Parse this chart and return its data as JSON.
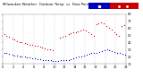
{
  "title": "Milwaukee Weather  Outdoor Temp  vs  Dew Point  (24 Hours)",
  "title_fontsize": 2.8,
  "background_color": "#ffffff",
  "xlim": [
    0,
    24
  ],
  "ylim": [
    10,
    80
  ],
  "yticks": [
    10,
    20,
    30,
    40,
    50,
    60,
    70,
    80
  ],
  "tick_fontsize": 2.5,
  "temp_color": "#cc0000",
  "dew_color": "#0000cc",
  "legend_bar_blue": "#0000cc",
  "legend_bar_red": "#cc0000",
  "grid_color": "#aaaaaa",
  "temp_x": [
    0.3,
    0.7,
    1.2,
    1.8,
    2.3,
    2.7,
    3.2,
    3.7,
    4.3,
    4.7,
    5.2,
    5.7,
    6.2,
    6.8,
    7.3,
    7.7,
    8.2,
    8.7,
    9.2,
    9.7,
    11.2,
    11.7,
    12.2,
    12.8,
    13.3,
    13.8,
    14.3,
    14.7,
    15.2,
    15.7,
    16.2,
    16.7,
    17.2,
    17.8,
    18.2,
    18.7,
    19.2,
    19.7,
    20.2,
    20.7,
    21.2,
    21.7,
    22.2,
    22.7,
    23.2,
    23.7
  ],
  "temp_y": [
    52,
    50,
    48,
    46,
    44,
    42,
    41,
    40,
    39,
    38,
    37,
    37,
    36,
    35,
    34,
    33,
    32,
    31,
    30,
    29,
    47,
    48,
    50,
    52,
    53,
    54,
    55,
    56,
    57,
    58,
    57,
    55,
    52,
    50,
    66,
    67,
    68,
    67,
    63,
    61,
    58,
    55,
    52,
    50,
    63,
    65
  ],
  "dew_x": [
    0.3,
    0.7,
    1.2,
    1.8,
    2.3,
    2.7,
    3.2,
    3.7,
    4.3,
    4.7,
    5.2,
    5.7,
    6.3,
    6.8,
    7.3,
    7.8,
    8.3,
    8.8,
    9.3,
    9.8,
    10.3,
    10.8,
    11.3,
    11.8,
    12.3,
    12.8,
    13.3,
    13.8,
    14.3,
    14.8,
    15.3,
    15.8,
    16.3,
    16.8,
    17.3,
    17.8,
    18.3,
    18.8,
    19.3,
    19.8,
    20.3,
    20.8,
    21.3,
    21.8,
    22.3,
    22.8,
    23.3,
    23.8
  ],
  "dew_y": [
    26,
    25,
    24,
    23,
    22,
    22,
    21,
    20,
    20,
    19,
    19,
    18,
    18,
    17,
    17,
    16,
    16,
    15,
    15,
    14,
    14,
    14,
    15,
    15,
    16,
    16,
    17,
    18,
    19,
    20,
    21,
    22,
    23,
    24,
    25,
    25,
    26,
    27,
    28,
    29,
    30,
    29,
    28,
    27,
    26,
    25,
    24,
    23
  ],
  "vline_positions": [
    2,
    4,
    6,
    8,
    10,
    12,
    14,
    16,
    18,
    20,
    22,
    24
  ],
  "marker_size": 0.8,
  "figsize": [
    1.6,
    0.87
  ],
  "dpi": 100
}
